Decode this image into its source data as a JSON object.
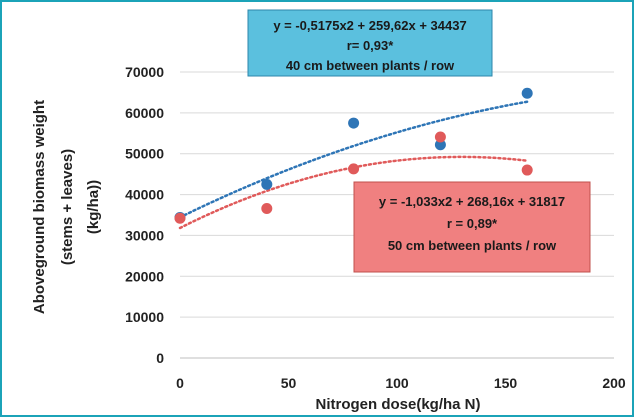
{
  "chart_data": {
    "type": "scatter",
    "title": "",
    "xlabel": "Nitrogen dose(kg/ha N)",
    "ylabel_lines": [
      "Aboveground biomass weight",
      "(stems + leaves)",
      "(kg/ha))"
    ],
    "xlim": [
      0,
      200
    ],
    "ylim": [
      0,
      70000
    ],
    "x_ticks": [
      0,
      50,
      100,
      150,
      200
    ],
    "y_ticks": [
      0,
      10000,
      20000,
      30000,
      40000,
      50000,
      60000,
      70000
    ],
    "x_tick_labels": [
      "0",
      "50",
      "100",
      "150",
      "200"
    ],
    "y_tick_labels": [
      "0",
      "10000",
      "20000",
      "30000",
      "40000",
      "50000",
      "60000",
      "70000"
    ],
    "grid": "horizontal",
    "series": [
      {
        "color": "#2e75b6",
        "x": [
          0,
          40,
          80,
          120,
          160
        ],
        "y": [
          34400,
          42500,
          57500,
          52200,
          64800
        ],
        "trendline": {
          "type": "polynomial",
          "a": -0.5175,
          "b": 259.62,
          "c": 34437,
          "x_range": [
            0,
            160
          ]
        },
        "annotation": {
          "lines": [
            "y = -0,5175x2 + 259,62x + 34437",
            "r= 0,93*",
            "40 cm between plants / row"
          ],
          "fill": "#5bc0de",
          "border": "#2e86ab"
        }
      },
      {
        "color": "#e05a5a",
        "x": [
          0,
          40,
          80,
          120,
          160
        ],
        "y": [
          34200,
          36600,
          46300,
          54100,
          46000
        ],
        "trendline": {
          "type": "polynomial",
          "a": -1.033,
          "b": 268.16,
          "c": 31817,
          "x_range": [
            0,
            160
          ]
        },
        "annotation": {
          "lines": [
            "y = -1,033x2 + 268,16x + 31817",
            "r = 0,89*",
            "50 cm between plants / row"
          ],
          "fill": "#f08080",
          "border": "#c0504d"
        }
      }
    ]
  }
}
